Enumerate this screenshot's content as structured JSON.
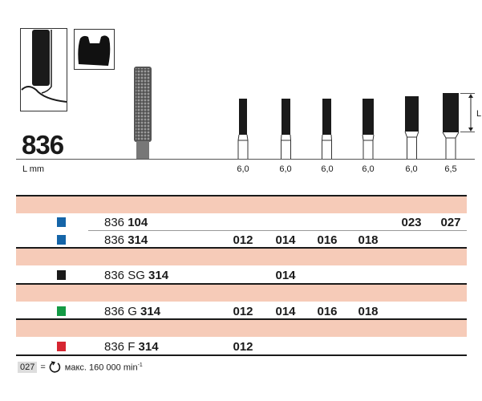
{
  "model": "836",
  "length_label": "L mm",
  "dimension_label": "L",
  "lengths": [
    "6,0",
    "6,0",
    "6,0",
    "6,0",
    "6,0",
    "6,5"
  ],
  "rows": [
    {
      "color": "#1565a8",
      "prefix": "836 ",
      "suffix": "104",
      "values": [
        "",
        "",
        "",
        "",
        "023",
        "027"
      ]
    },
    {
      "color": "#1565a8",
      "prefix": "836 ",
      "suffix": "314",
      "values": [
        "012",
        "014",
        "016",
        "018",
        "",
        ""
      ]
    },
    {
      "color": "#1a1a1a",
      "prefix": "836 SG ",
      "suffix": "314",
      "values": [
        "",
        "014",
        "",
        "",
        "",
        ""
      ]
    },
    {
      "color": "#149a45",
      "prefix": "836 G ",
      "suffix": "314",
      "values": [
        "012",
        "014",
        "016",
        "018",
        "",
        ""
      ]
    },
    {
      "color": "#d62631",
      "prefix": "836 F ",
      "suffix": "314",
      "values": [
        "012",
        "",
        "",
        "",
        "",
        ""
      ]
    }
  ],
  "footer": {
    "badge": "027",
    "equals": "=",
    "text": "макс. 160 000 min",
    "exponent": "-1",
    "icon": "rotation-icon"
  }
}
